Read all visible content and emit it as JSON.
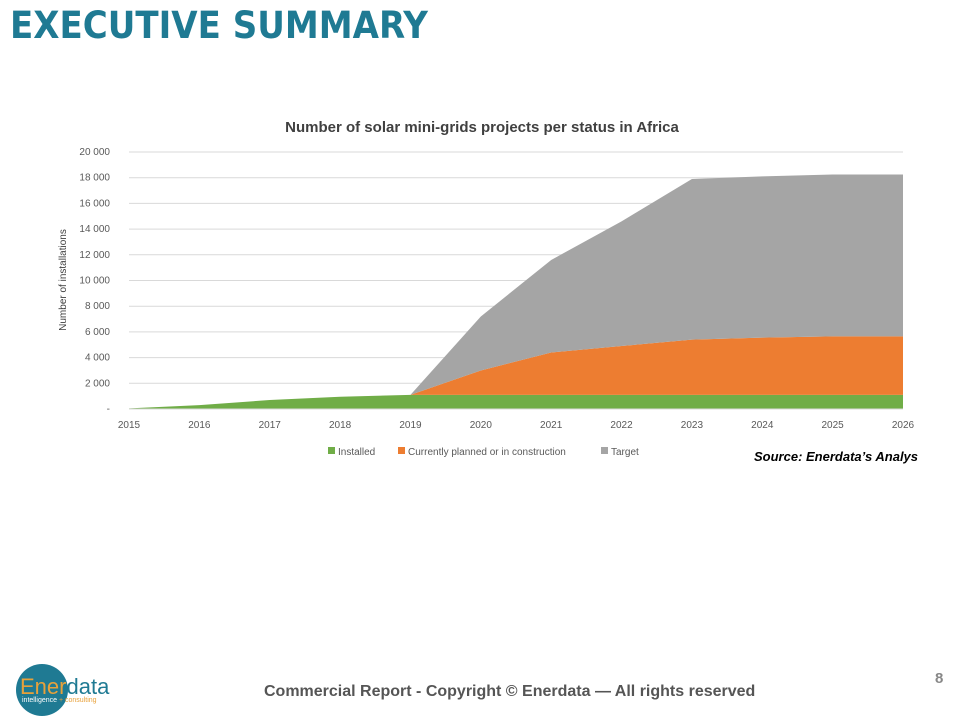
{
  "header": {
    "title": "EXECUTIVE SUMMARY"
  },
  "source": "Source: Enerdata’s Analys",
  "footer": {
    "text": "Commercial Report - Copyright © Enerdata — All rights reserved",
    "page": "8"
  },
  "logo": {
    "name_a": "Ener",
    "name_b": "data",
    "tagline_a": "intelligence",
    "tagline_b": "+ consulting"
  },
  "chart_data": {
    "type": "area",
    "stacked": true,
    "title": "Number of solar mini-grids projects per status in Africa",
    "ylabel": "Number  of installations",
    "xlabel": "",
    "ylim": [
      0,
      20000
    ],
    "yticks": [
      "-",
      "2 000",
      "4 000",
      "6 000",
      "8 000",
      "10 000",
      "12 000",
      "14 000",
      "16 000",
      "18 000",
      "20 000"
    ],
    "x": [
      "2015",
      "2016",
      "2017",
      "2018",
      "2019",
      "2020",
      "2021",
      "2022",
      "2023",
      "2024",
      "2025",
      "2026"
    ],
    "grid": true,
    "legend": "bottom",
    "series": [
      {
        "name": "Installed",
        "color": "#70ad47",
        "values": [
          50,
          300,
          700,
          950,
          1100,
          1100,
          1100,
          1100,
          1100,
          1100,
          1100,
          1100
        ]
      },
      {
        "name": "Currently planned or in construction",
        "color": "#ed7d31",
        "values": [
          0,
          0,
          0,
          0,
          0,
          1900,
          3300,
          3800,
          4300,
          4450,
          4550,
          4550
        ]
      },
      {
        "name": "Target",
        "color": "#a5a5a5",
        "values": [
          0,
          0,
          0,
          0,
          0,
          4200,
          7200,
          9700,
          12500,
          12550,
          12600,
          12600
        ]
      }
    ]
  }
}
